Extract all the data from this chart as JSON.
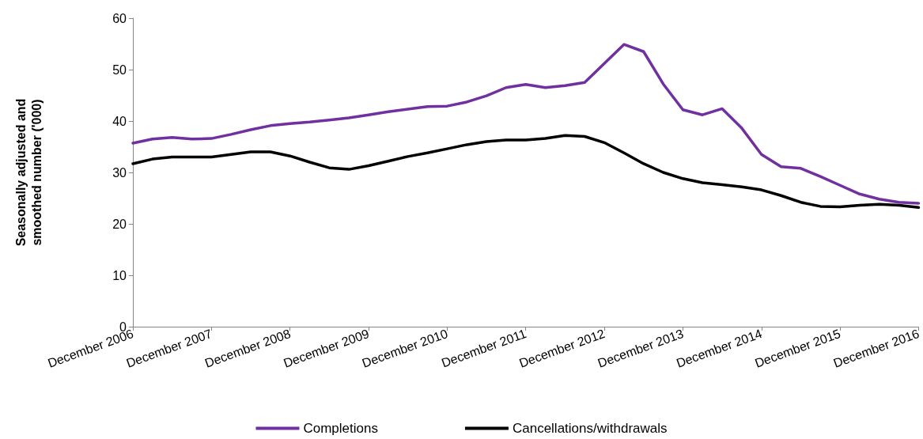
{
  "chart_data": {
    "type": "line",
    "ylabel": "Seasonally adjusted and\nsmoothed number ('000)",
    "categories": [
      "December 2006",
      null,
      null,
      null,
      "December 2007",
      null,
      null,
      null,
      "December 2008",
      null,
      null,
      null,
      "December 2009",
      null,
      null,
      null,
      "December 2010",
      null,
      null,
      null,
      "December 2011",
      null,
      null,
      null,
      "December 2012",
      null,
      null,
      null,
      "December 2013",
      null,
      null,
      null,
      "December 2014",
      null,
      null,
      null,
      "December 2015",
      null,
      null,
      null,
      "December 2016"
    ],
    "series": [
      {
        "name": "Completions",
        "color": "#7030a0",
        "values": [
          35.7,
          36.5,
          36.8,
          36.5,
          36.6,
          37.4,
          38.3,
          39.1,
          39.5,
          39.8,
          40.2,
          40.6,
          41.2,
          41.8,
          42.3,
          42.8,
          42.9,
          43.7,
          44.9,
          46.5,
          47.1,
          46.5,
          46.9,
          47.5,
          51.2,
          54.9,
          53.5,
          47.2,
          42.2,
          41.2,
          42.4,
          38.6,
          33.5,
          31.1,
          30.8,
          29.2,
          27.5,
          25.8,
          24.8,
          24.2,
          24.0
        ]
      },
      {
        "name": "Cancellations/withdrawals",
        "color": "#000000",
        "values": [
          31.7,
          32.6,
          33.0,
          33.0,
          33.0,
          33.5,
          34.0,
          34.0,
          33.2,
          32.0,
          30.9,
          30.6,
          31.3,
          32.2,
          33.1,
          33.8,
          34.6,
          35.4,
          36.0,
          36.3,
          36.3,
          36.6,
          37.2,
          37.0,
          35.8,
          33.8,
          31.7,
          30.0,
          28.8,
          28.0,
          27.6,
          27.2,
          26.6,
          25.5,
          24.2,
          23.4,
          23.3,
          23.6,
          23.8,
          23.6,
          23.2
        ]
      }
    ],
    "ylim": [
      0,
      60
    ],
    "yticks": [
      0,
      10,
      20,
      30,
      40,
      50,
      60
    ],
    "grid": false,
    "legend": "bottom",
    "marker": "none",
    "line_style": "solid"
  }
}
